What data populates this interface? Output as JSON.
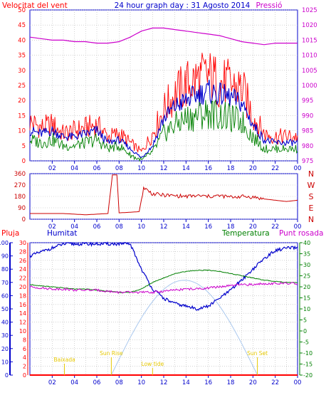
{
  "header": {
    "title": "24 hour graph day : 31 Agosto 2014",
    "left_label": "Velocitat del vent",
    "right_label": "Pressió"
  },
  "colors": {
    "frame": "#0000cc",
    "grid": "#b8b8b8",
    "wind_gust": "#ff0000",
    "wind_speed": "#0000cc",
    "wind_avg": "#008000",
    "pressure": "#cc00cc",
    "direction": "#cc0000",
    "humidity": "#0000cc",
    "temperature": "#008000",
    "dewpoint": "#cc00cc",
    "rain": "#ff0000",
    "sun": "#aac8ee",
    "annotation": "#e6c800"
  },
  "chart_data": [
    {
      "type": "line",
      "name": "wind_pressure",
      "x_ticks": [
        "02",
        "04",
        "06",
        "08",
        "10",
        "12",
        "14",
        "16",
        "18",
        "20",
        "22",
        "00"
      ],
      "y_left": {
        "label": "Velocitat del vent",
        "range": [
          0,
          50
        ],
        "ticks": [
          "0",
          "5",
          "10",
          "15",
          "20",
          "25",
          "30",
          "35",
          "40",
          "45",
          "50"
        ]
      },
      "y_right": {
        "label": "Pressió",
        "range": [
          975,
          1025
        ],
        "ticks": [
          "975",
          "980",
          "985",
          "990",
          "995",
          "1000",
          "1005",
          "1010",
          "1015",
          "1020",
          "1025"
        ]
      },
      "x_hours": [
        0,
        1,
        2,
        3,
        4,
        5,
        6,
        7,
        8,
        9,
        10,
        11,
        12,
        13,
        14,
        15,
        16,
        17,
        18,
        19,
        20,
        21,
        22,
        23,
        24
      ],
      "series": [
        {
          "key": "gust",
          "values": [
            13,
            11,
            12,
            9,
            10,
            11,
            12,
            8,
            9,
            6,
            3,
            9,
            17,
            22,
            25,
            27,
            28,
            26,
            25,
            24,
            15,
            9,
            8,
            8,
            8
          ]
        },
        {
          "key": "speed",
          "values": [
            10,
            9,
            10,
            8,
            8,
            9,
            10,
            6,
            7,
            4,
            1,
            5,
            14,
            18,
            20,
            22,
            23,
            22,
            21,
            19,
            12,
            7,
            6,
            6,
            6
          ]
        },
        {
          "key": "average",
          "values": [
            7,
            6,
            7,
            5,
            5,
            6,
            7,
            4,
            5,
            2,
            0,
            3,
            9,
            12,
            14,
            15,
            16,
            15,
            14,
            13,
            8,
            4,
            4,
            4,
            4
          ]
        },
        {
          "key": "pressure",
          "axis": "right",
          "values": [
            1016,
            1015.5,
            1015,
            1015,
            1014.5,
            1014.5,
            1014,
            1014,
            1014.5,
            1016,
            1018,
            1019,
            1019,
            1018.5,
            1018,
            1017.5,
            1017,
            1016.5,
            1015.5,
            1014.5,
            1014,
            1013.5,
            1014,
            1014,
            1014
          ]
        }
      ]
    },
    {
      "type": "line",
      "name": "wind_direction",
      "x_ticks": [
        "02",
        "04",
        "06",
        "08",
        "10",
        "12",
        "14",
        "16",
        "18",
        "20",
        "22",
        "00"
      ],
      "y_left": {
        "range": [
          0,
          360
        ],
        "ticks": [
          "0",
          "90",
          "180",
          "270",
          "360"
        ]
      },
      "y_right_labels": [
        "N",
        "W",
        "S",
        "E",
        "N"
      ],
      "x_hours": [
        0,
        1,
        2,
        3,
        4,
        5,
        6,
        7,
        7.4,
        7.8,
        8,
        9,
        9.8,
        10.2,
        11,
        12,
        13,
        14,
        15,
        16,
        17,
        18,
        19,
        20,
        21,
        22,
        23,
        24
      ],
      "values": [
        45,
        45,
        45,
        45,
        40,
        35,
        40,
        45,
        350,
        350,
        50,
        55,
        60,
        250,
        200,
        190,
        185,
        180,
        185,
        180,
        185,
        175,
        180,
        175,
        160,
        150,
        140,
        150
      ]
    },
    {
      "type": "line",
      "name": "humidity_temperature",
      "x_ticks": [
        "02",
        "04",
        "06",
        "08",
        "10",
        "12",
        "14",
        "16",
        "18",
        "20",
        "22",
        "00"
      ],
      "labels": {
        "rain": "Pluja",
        "humidity": "Humitat",
        "temperature": "Temperatura",
        "dewpoint": "Punt rosada"
      },
      "y_rain": {
        "range": [
          0,
          30
        ],
        "ticks": [
          "0",
          "2",
          "4",
          "6",
          "8",
          "10",
          "12",
          "14",
          "16",
          "18",
          "20",
          "22",
          "24",
          "26",
          "28",
          "30"
        ]
      },
      "y_humidity": {
        "range": [
          0,
          100
        ],
        "ticks": [
          "0",
          "10",
          "20",
          "30",
          "40",
          "50",
          "60",
          "70",
          "80",
          "90",
          "100"
        ]
      },
      "y_temperature": {
        "range": [
          -20,
          40
        ],
        "ticks": [
          "-20",
          "-15",
          "-10",
          "-5",
          "0",
          "5",
          "10",
          "15",
          "20",
          "25",
          "30",
          "35",
          "40"
        ]
      },
      "x_hours": [
        0,
        1,
        2,
        3,
        4,
        5,
        6,
        7,
        8,
        9,
        10,
        11,
        12,
        13,
        14,
        15,
        16,
        17,
        18,
        19,
        20,
        21,
        22,
        23,
        24
      ],
      "series": [
        {
          "key": "humidity",
          "values": [
            90,
            93,
            96,
            99,
            99,
            99,
            99,
            99,
            99,
            99,
            80,
            65,
            58,
            54,
            52,
            50,
            52,
            58,
            64,
            72,
            80,
            88,
            94,
            96,
            96
          ]
        },
        {
          "key": "temperature",
          "values": [
            21,
            20.5,
            20,
            19.5,
            19,
            19,
            18.5,
            18,
            17.5,
            17.5,
            19,
            22,
            24,
            26,
            27,
            27.5,
            27.5,
            27,
            26,
            25,
            24,
            23,
            22.5,
            22,
            22
          ]
        },
        {
          "key": "dewpoint",
          "values": [
            20,
            19.5,
            19,
            19,
            18.5,
            18.5,
            18.5,
            18,
            17.5,
            17.5,
            17.5,
            17.5,
            18,
            18.5,
            19,
            19,
            19.5,
            20,
            20.5,
            21,
            21,
            21.5,
            21.5,
            21.5,
            21.5
          ]
        },
        {
          "key": "rain",
          "values": [
            0,
            0,
            0,
            0,
            0,
            0,
            0,
            0,
            0,
            0,
            0,
            0,
            0,
            0,
            0,
            0,
            0,
            0,
            0,
            0,
            0,
            0,
            0,
            0,
            0
          ]
        }
      ],
      "sun": {
        "rise_hour": 7.3,
        "set_hour": 20.4,
        "peak_hour": 14.0,
        "peak_temperature": 23
      },
      "annotations": [
        {
          "text": "Baixada",
          "hour": 3.1
        },
        {
          "text": "Sun Rise",
          "hour": 7.3
        },
        {
          "text": "Low tide",
          "hour": 11.0
        },
        {
          "text": "Sun Set",
          "hour": 20.4
        }
      ]
    }
  ]
}
